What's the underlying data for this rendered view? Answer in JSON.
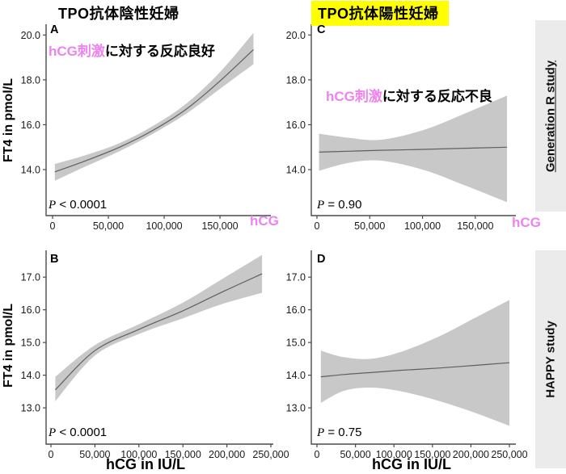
{
  "figure": {
    "column_titles": [
      {
        "text": "TPO抗体陰性妊婦",
        "highlighted": false
      },
      {
        "text": "TPO抗体陽性妊婦",
        "highlighted": true
      }
    ],
    "row_labels": [
      {
        "text": "Generation R study",
        "underlined": true
      },
      {
        "text": "HAPPY study",
        "underlined": false
      }
    ],
    "colors": {
      "annotation_pink": "#ee82ee",
      "title_highlight": "#ffff00",
      "confidence_band": "#c8c8c8",
      "regression_line": "#5f5f5f",
      "strip_background": "#ebebeb",
      "axis": "#4a4a4a"
    }
  },
  "chart_data": [
    {
      "panel": "A",
      "type": "line",
      "study": "Generation R study",
      "group": "TPO抗体陰性妊婦",
      "annotation": {
        "pink": "hCG刺激",
        "rest": "に対する反応良好"
      },
      "p_symbol": "P",
      "p_rest": " < 0.0001",
      "ylabel": "FT4 in pmol/L",
      "x_unit_label": "hCG",
      "xlim": [
        -5800,
        195600
      ],
      "ylim": [
        11.95,
        20.48
      ],
      "x_ticks": [
        {
          "v": 0,
          "label": "0"
        },
        {
          "v": 50000,
          "label": "50,000"
        },
        {
          "v": 100000,
          "label": "100,000"
        },
        {
          "v": 150000,
          "label": "150,000"
        }
      ],
      "y_ticks": [
        {
          "v": 14,
          "label": "14.0"
        },
        {
          "v": 16,
          "label": "16.0"
        },
        {
          "v": 18,
          "label": "18.0"
        },
        {
          "v": 20,
          "label": "20.0"
        }
      ],
      "x": [
        2000,
        30000,
        60000,
        90000,
        120000,
        150000,
        180000
      ],
      "y": [
        13.9,
        14.4,
        15.0,
        15.75,
        16.7,
        17.95,
        19.35
      ],
      "y_lower": [
        13.5,
        14.15,
        14.82,
        15.6,
        16.5,
        17.6,
        18.7
      ],
      "y_upper": [
        14.25,
        14.65,
        15.18,
        15.95,
        16.95,
        18.35,
        20.1
      ]
    },
    {
      "panel": "B",
      "type": "line",
      "study": "HAPPY study",
      "group": "TPO抗体陰性妊婦",
      "p_symbol": "P",
      "p_rest": " < 0.0001",
      "ylabel": "FT4 in pmol/L",
      "xlabel": "hCG in IU/L",
      "xlim": [
        -5515,
        252750
      ],
      "ylim": [
        11.89,
        17.82
      ],
      "x_ticks": [
        {
          "v": 0,
          "label": "0"
        },
        {
          "v": 50000,
          "label": "50,000"
        },
        {
          "v": 100000,
          "label": "100,000"
        },
        {
          "v": 150000,
          "label": "150,000"
        },
        {
          "v": 200000,
          "label": "200,000"
        },
        {
          "v": 250000,
          "label": "250,000"
        }
      ],
      "y_ticks": [
        {
          "v": 13,
          "label": "13.0"
        },
        {
          "v": 14,
          "label": "14.0"
        },
        {
          "v": 15,
          "label": "15.0"
        },
        {
          "v": 16,
          "label": "16.0"
        },
        {
          "v": 17,
          "label": "17.0"
        }
      ],
      "x": [
        5000,
        50000,
        100000,
        150000,
        195000,
        240000
      ],
      "y": [
        13.55,
        14.75,
        15.4,
        15.97,
        16.55,
        17.1
      ],
      "y_lower": [
        13.2,
        14.6,
        15.26,
        15.74,
        16.18,
        16.52
      ],
      "y_upper": [
        13.95,
        14.92,
        15.56,
        16.22,
        16.95,
        17.68
      ]
    },
    {
      "panel": "C",
      "type": "line",
      "study": "Generation R study",
      "group": "TPO抗体陽性妊婦",
      "annotation": {
        "pink": "hCG刺激",
        "rest": "に対する反応不良"
      },
      "p_symbol": "P",
      "p_rest": " = 0.90",
      "x_unit_label": "hCG",
      "xlim": [
        -5360,
        188420
      ],
      "ylim": [
        11.95,
        20.48
      ],
      "x_ticks": [
        {
          "v": 0,
          "label": "0"
        },
        {
          "v": 50000,
          "label": "50,000"
        },
        {
          "v": 100000,
          "label": "100,000"
        },
        {
          "v": 150000,
          "label": "150,000"
        }
      ],
      "y_ticks": [
        {
          "v": 14,
          "label": "14.0"
        },
        {
          "v": 16,
          "label": "16.0"
        },
        {
          "v": 18,
          "label": "18.0"
        },
        {
          "v": 20,
          "label": "20.0"
        }
      ],
      "x": [
        2000,
        30000,
        60000,
        100000,
        140000,
        180000
      ],
      "y": [
        14.78,
        14.82,
        14.86,
        14.9,
        14.95,
        15.0
      ],
      "y_lower": [
        13.95,
        14.3,
        14.4,
        14.0,
        13.3,
        12.55
      ],
      "y_upper": [
        15.6,
        15.42,
        15.33,
        15.75,
        16.5,
        17.3
      ]
    },
    {
      "panel": "D",
      "type": "line",
      "study": "HAPPY study",
      "group": "TPO抗体陽性妊婦",
      "p_symbol": "P",
      "p_rest": " = 0.75",
      "xlabel": "hCG in IU/L",
      "xlim": [
        -7350,
        258400
      ],
      "ylim": [
        11.89,
        17.82
      ],
      "x_ticks": [
        {
          "v": 0,
          "label": "0"
        },
        {
          "v": 50000,
          "label": "50,000"
        },
        {
          "v": 100000,
          "label": "100,000"
        },
        {
          "v": 150000,
          "label": "150,000"
        },
        {
          "v": 200000,
          "label": "200,000"
        },
        {
          "v": 250000,
          "label": "250,000"
        }
      ],
      "y_ticks": [
        {
          "v": 13,
          "label": "13.0"
        },
        {
          "v": 14,
          "label": "14.0"
        },
        {
          "v": 15,
          "label": "15.0"
        },
        {
          "v": 16,
          "label": "16.0"
        },
        {
          "v": 17,
          "label": "17.0"
        }
      ],
      "x": [
        5000,
        35000,
        70000,
        110000,
        160000,
        205000,
        250000
      ],
      "y": [
        13.95,
        14.02,
        14.08,
        14.15,
        14.22,
        14.3,
        14.38
      ],
      "y_lower": [
        13.15,
        13.52,
        13.62,
        13.5,
        13.2,
        12.85,
        12.45
      ],
      "y_upper": [
        14.75,
        14.55,
        14.5,
        14.72,
        15.2,
        15.75,
        16.3
      ]
    }
  ]
}
